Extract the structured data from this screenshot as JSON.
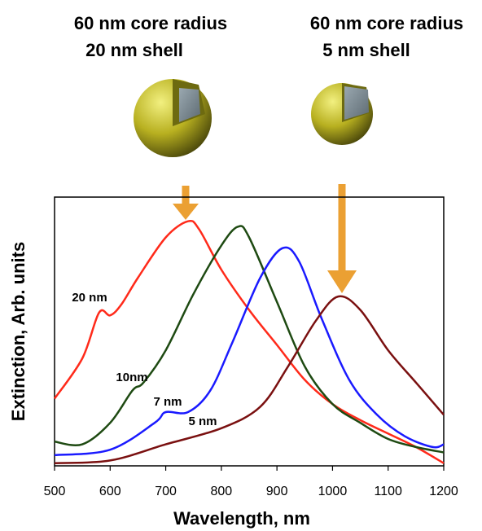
{
  "chart_data": {
    "type": "line",
    "headings": [
      {
        "line1": "60 nm core radius",
        "line2": "20 nm shell"
      },
      {
        "line1": "60 nm core radius",
        "line2": "5 nm shell"
      }
    ],
    "xlabel": "Wavelength, nm",
    "ylabel": "Extinction, Arb. units",
    "xlim": [
      500,
      1200
    ],
    "ylim": [
      0,
      1
    ],
    "xticks": [
      500,
      600,
      700,
      800,
      900,
      1000,
      1100,
      1200
    ],
    "series": [
      {
        "name": "20 nm",
        "color": "#ff2a1a",
        "x": [
          500,
          550,
          580,
          600,
          620,
          650,
          700,
          740,
          760,
          800,
          850,
          900,
          950,
          1000,
          1050,
          1100,
          1150,
          1200
        ],
        "values": [
          0.25,
          0.4,
          0.57,
          0.56,
          0.6,
          0.7,
          0.85,
          0.91,
          0.88,
          0.73,
          0.58,
          0.45,
          0.32,
          0.23,
          0.17,
          0.12,
          0.07,
          0.01
        ]
      },
      {
        "name": "10nm",
        "color": "#1e4a12",
        "x": [
          500,
          550,
          600,
          640,
          660,
          700,
          750,
          800,
          830,
          850,
          900,
          950,
          1000,
          1050,
          1100,
          1150,
          1200
        ],
        "values": [
          0.09,
          0.08,
          0.16,
          0.28,
          0.31,
          0.43,
          0.64,
          0.82,
          0.89,
          0.85,
          0.61,
          0.37,
          0.23,
          0.16,
          0.1,
          0.07,
          0.05
        ]
      },
      {
        "name": "7 nm",
        "color": "#1a1aff",
        "x": [
          500,
          600,
          680,
          700,
          740,
          780,
          820,
          870,
          910,
          940,
          980,
          1030,
          1080,
          1130,
          1180,
          1200
        ],
        "values": [
          0.04,
          0.06,
          0.16,
          0.2,
          0.2,
          0.28,
          0.46,
          0.7,
          0.81,
          0.76,
          0.55,
          0.32,
          0.19,
          0.11,
          0.07,
          0.08
        ]
      },
      {
        "name": "5 nm",
        "color": "#7a1010",
        "x": [
          500,
          600,
          700,
          800,
          870,
          920,
          970,
          1010,
          1050,
          1100,
          1150,
          1200
        ],
        "values": [
          0.01,
          0.02,
          0.08,
          0.14,
          0.22,
          0.37,
          0.54,
          0.63,
          0.58,
          0.43,
          0.31,
          0.19
        ]
      }
    ]
  }
}
